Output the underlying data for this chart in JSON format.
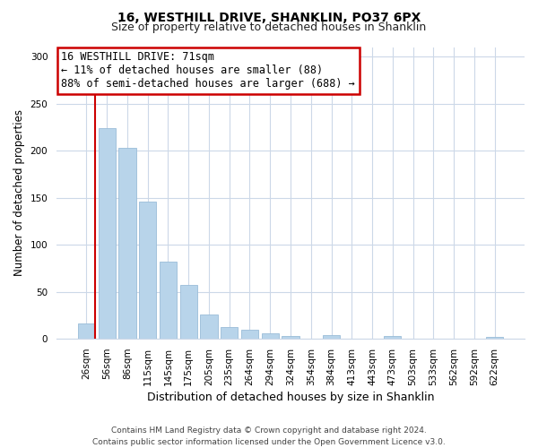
{
  "title": "16, WESTHILL DRIVE, SHANKLIN, PO37 6PX",
  "subtitle": "Size of property relative to detached houses in Shanklin",
  "xlabel": "Distribution of detached houses by size in Shanklin",
  "ylabel": "Number of detached properties",
  "bar_labels": [
    "26sqm",
    "56sqm",
    "86sqm",
    "115sqm",
    "145sqm",
    "175sqm",
    "205sqm",
    "235sqm",
    "264sqm",
    "294sqm",
    "324sqm",
    "354sqm",
    "384sqm",
    "413sqm",
    "443sqm",
    "473sqm",
    "503sqm",
    "533sqm",
    "562sqm",
    "592sqm",
    "622sqm"
  ],
  "bar_heights": [
    16,
    224,
    203,
    146,
    82,
    57,
    26,
    13,
    10,
    6,
    3,
    0,
    4,
    0,
    0,
    3,
    0,
    0,
    0,
    0,
    2
  ],
  "bar_color": "#b8d4ea",
  "bar_edge_color": "#9abcd8",
  "vline_x_index": 0,
  "vline_color": "#cc0000",
  "ylim": [
    0,
    310
  ],
  "yticks": [
    0,
    50,
    100,
    150,
    200,
    250,
    300
  ],
  "annotation_title": "16 WESTHILL DRIVE: 71sqm",
  "annotation_line1": "← 11% of detached houses are smaller (88)",
  "annotation_line2": "88% of semi-detached houses are larger (688) →",
  "annotation_box_color": "#ffffff",
  "annotation_box_edge": "#cc0000",
  "footer_line1": "Contains HM Land Registry data © Crown copyright and database right 2024.",
  "footer_line2": "Contains public sector information licensed under the Open Government Licence v3.0.",
  "background_color": "#ffffff",
  "grid_color": "#ccd8e8",
  "title_fontsize": 10,
  "subtitle_fontsize": 9,
  "annotation_fontsize": 8.5,
  "ylabel_fontsize": 8.5,
  "xlabel_fontsize": 9,
  "tick_fontsize": 7.5,
  "footer_fontsize": 6.5
}
